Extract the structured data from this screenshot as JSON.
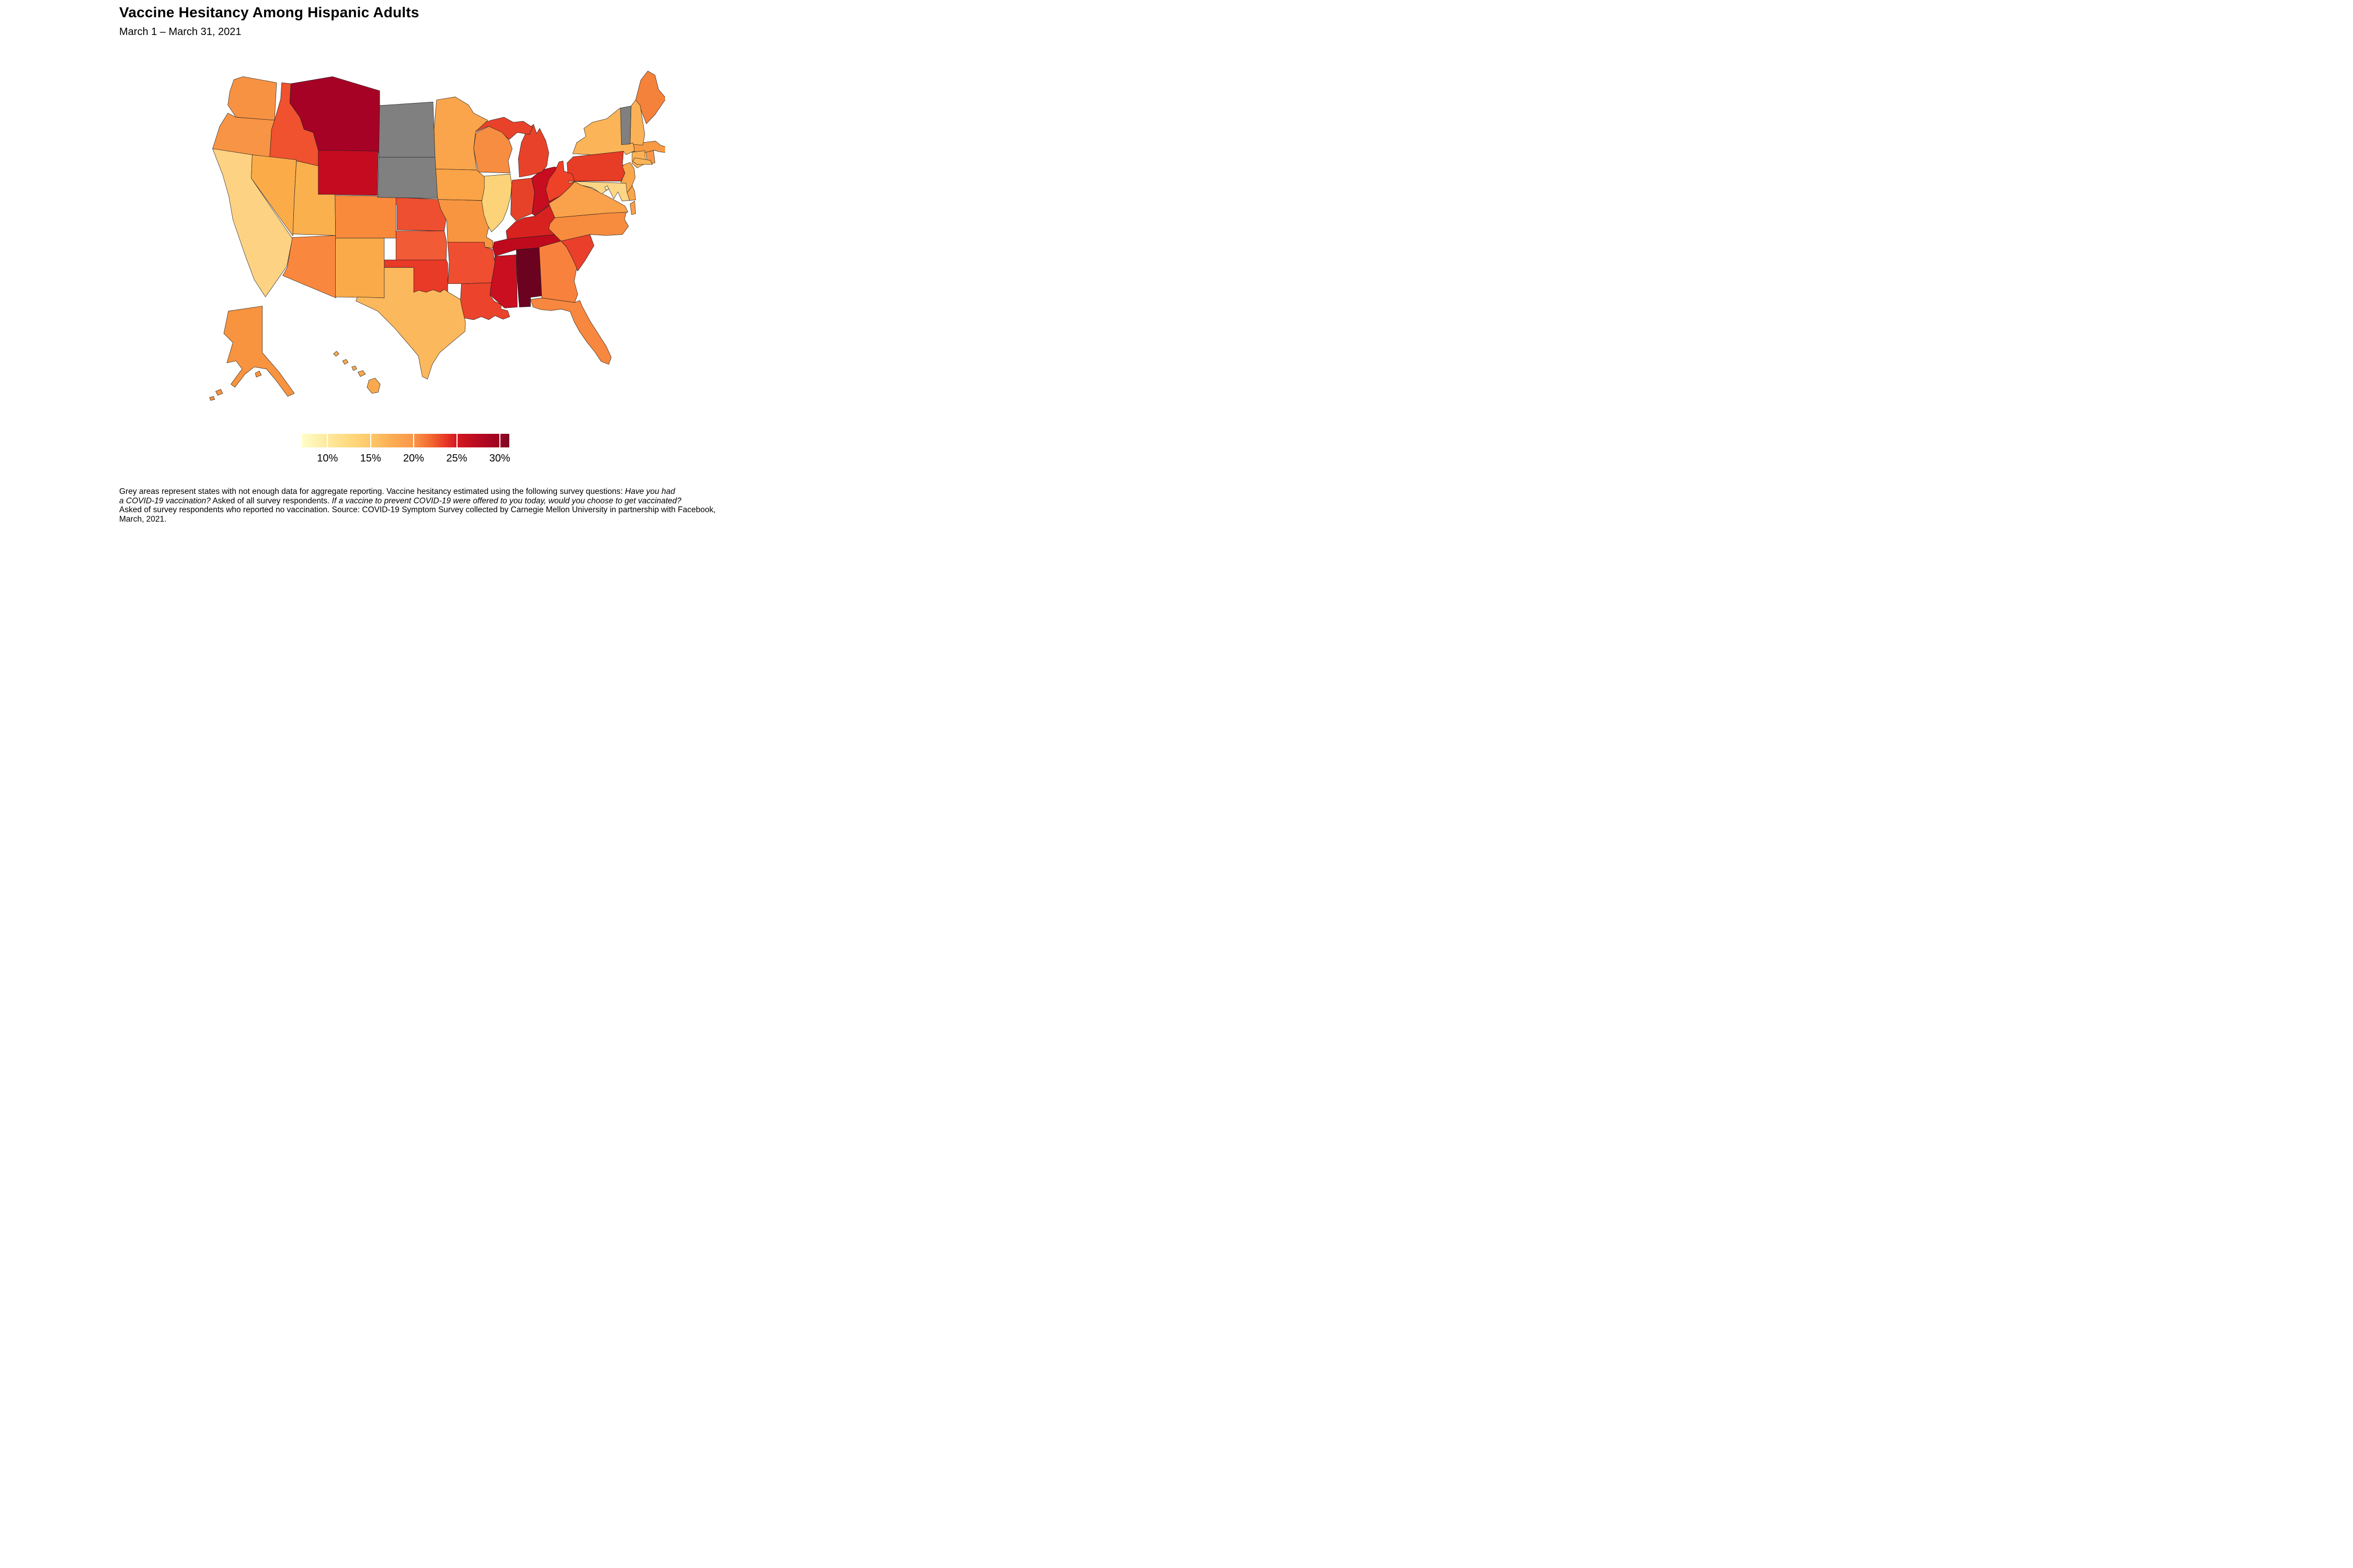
{
  "title": "Vaccine Hesitancy Among Hispanic Adults",
  "subtitle": "March 1 – March 31, 2021",
  "legend": {
    "ticks": [
      "10%",
      "15%",
      "20%",
      "25%",
      "30%"
    ],
    "tick_positions": [
      0.124,
      0.332,
      0.539,
      0.747,
      0.954
    ],
    "gradient": [
      [
        "#fffdc8",
        0
      ],
      [
        "#fee99e",
        0.124
      ],
      [
        "#fed97f",
        0.23
      ],
      [
        "#fdc868",
        0.332
      ],
      [
        "#fbab53",
        0.44
      ],
      [
        "#f9974a",
        0.539
      ],
      [
        "#f1632f",
        0.63
      ],
      [
        "#e63326",
        0.7
      ],
      [
        "#d41820",
        0.747
      ],
      [
        "#b80b21",
        0.85
      ],
      [
        "#9c0322",
        0.954
      ],
      [
        "#7a0a22",
        1
      ]
    ],
    "no_data_color": "#808080"
  },
  "footnote": {
    "lines": [
      [
        {
          "t": "Grey areas represent states with not enough data for aggregate reporting. Vaccine hesitancy estimated using the following survey questions: ",
          "i": 0
        },
        {
          "t": "Have you had",
          "i": 1
        }
      ],
      [
        {
          "t": "a COVID-19 vaccination?",
          "i": 1
        },
        {
          "t": " Asked of all survey respondents. ",
          "i": 0
        },
        {
          "t": "If a vaccine to prevent COVID-19 were offered to you today, would you choose to get vaccinated?",
          "i": 1
        }
      ],
      [
        {
          "t": "Asked of survey respondents who reported no vaccination. Source: COVID-19 Symptom Survey collected by Carnegie Mellon University in partnership with Facebook,",
          "i": 0
        }
      ],
      [
        {
          "t": "March, 2021.",
          "i": 0
        }
      ]
    ]
  },
  "chart_data": {
    "type": "heatmap",
    "subtype": "us-state-choropleth",
    "title": "Vaccine Hesitancy Among Hispanic Adults",
    "subtitle": "March 1 – March 31, 2021",
    "unit": "percent hesitant",
    "scale": {
      "min": 7,
      "max": 31,
      "tick_values": [
        10,
        15,
        20,
        25,
        30
      ],
      "palette": "YlOrRd (light yellow = low, dark maroon = high)"
    },
    "no_data_states": [
      "North Dakota",
      "South Dakota",
      "Vermont"
    ],
    "states": [
      {
        "abbr": "AL",
        "name": "Alabama",
        "value": 31.5,
        "color": "#6b0220"
      },
      {
        "abbr": "MT",
        "name": "Montana",
        "value": 28,
        "color": "#a60226"
      },
      {
        "abbr": "TN",
        "name": "Tennessee",
        "value": 26.5,
        "color": "#bf0a1e"
      },
      {
        "abbr": "MS",
        "name": "Mississippi",
        "value": 26,
        "color": "#c90f20"
      },
      {
        "abbr": "OH",
        "name": "Ohio",
        "value": 25.5,
        "color": "#c70d1f"
      },
      {
        "abbr": "WY",
        "name": "Wyoming",
        "value": 25,
        "color": "#c50b1f"
      },
      {
        "abbr": "KY",
        "name": "Kentucky",
        "value": 24,
        "color": "#d8221f"
      },
      {
        "abbr": "PA",
        "name": "Pennsylvania",
        "value": 22.5,
        "color": "#e73c26"
      },
      {
        "abbr": "IN",
        "name": "Indiana",
        "value": 22,
        "color": "#e64229"
      },
      {
        "abbr": "OK",
        "name": "Oklahoma",
        "value": 22,
        "color": "#e93a28"
      },
      {
        "abbr": "MI",
        "name": "Michigan",
        "value": 21.5,
        "color": "#e8432a"
      },
      {
        "abbr": "SC",
        "name": "South Carolina",
        "value": 21.5,
        "color": "#ea3f2b"
      },
      {
        "abbr": "LA",
        "name": "Louisiana",
        "value": 21,
        "color": "#eb432c"
      },
      {
        "abbr": "WV",
        "name": "West Virginia",
        "value": 21,
        "color": "#ee4127"
      },
      {
        "abbr": "ID",
        "name": "Idaho",
        "value": 20.5,
        "color": "#f0512f"
      },
      {
        "abbr": "NE",
        "name": "Nebraska",
        "value": 20.5,
        "color": "#ee4f30"
      },
      {
        "abbr": "AR",
        "name": "Arkansas",
        "value": 20.5,
        "color": "#ef4e30"
      },
      {
        "abbr": "KS",
        "name": "Kansas",
        "value": 20,
        "color": "#f15b36"
      },
      {
        "abbr": "ME",
        "name": "Maine",
        "value": 18.5,
        "color": "#f5823a"
      },
      {
        "abbr": "GA",
        "name": "Georgia",
        "value": 18,
        "color": "#f8813d"
      },
      {
        "abbr": "FL",
        "name": "Florida",
        "value": 18,
        "color": "#f8873f"
      },
      {
        "abbr": "NC",
        "name": "North Carolina",
        "value": 17.5,
        "color": "#f78b3e"
      },
      {
        "abbr": "WI",
        "name": "Wisconsin",
        "value": 17.5,
        "color": "#f78d41"
      },
      {
        "abbr": "CO",
        "name": "Colorado",
        "value": 17.5,
        "color": "#f98a3c"
      },
      {
        "abbr": "AZ",
        "name": "Arizona",
        "value": 17.5,
        "color": "#f9883e"
      },
      {
        "abbr": "WA",
        "name": "Washington",
        "value": 17,
        "color": "#f89243"
      },
      {
        "abbr": "OR",
        "name": "Oregon",
        "value": 17,
        "color": "#f89445"
      },
      {
        "abbr": "MO",
        "name": "Missouri",
        "value": 17,
        "color": "#f89540"
      },
      {
        "abbr": "AK",
        "name": "Alaska",
        "value": 17,
        "color": "#f8933f"
      },
      {
        "abbr": "RI",
        "name": "Rhode Island",
        "value": 17,
        "color": "#f89645"
      },
      {
        "abbr": "MA",
        "name": "Massachusetts",
        "value": 16.5,
        "color": "#f89a44"
      },
      {
        "abbr": "VA",
        "name": "Virginia",
        "value": 16,
        "color": "#f9a14b"
      },
      {
        "abbr": "MN",
        "name": "Minnesota",
        "value": 16,
        "color": "#faa54b"
      },
      {
        "abbr": "IA",
        "name": "Iowa",
        "value": 16,
        "color": "#faa347"
      },
      {
        "abbr": "DE",
        "name": "Delaware",
        "value": 16,
        "color": "#f9a74b"
      },
      {
        "abbr": "NJ",
        "name": "New Jersey",
        "value": 16,
        "color": "#faa74c"
      },
      {
        "abbr": "NM",
        "name": "New Mexico",
        "value": 15.5,
        "color": "#fbaa49"
      },
      {
        "abbr": "NV",
        "name": "Nevada",
        "value": 15.5,
        "color": "#fbac49"
      },
      {
        "abbr": "HI",
        "name": "Hawaii",
        "value": 15.5,
        "color": "#faa94e"
      },
      {
        "abbr": "UT",
        "name": "Utah",
        "value": 15,
        "color": "#fbb04e"
      },
      {
        "abbr": "NH",
        "name": "New Hampshire",
        "value": 15,
        "color": "#fbb156"
      },
      {
        "abbr": "CT",
        "name": "Connecticut",
        "value": 15,
        "color": "#fbb154"
      },
      {
        "abbr": "NY",
        "name": "New York",
        "value": 14.5,
        "color": "#fbb457"
      },
      {
        "abbr": "TX",
        "name": "Texas",
        "value": 14,
        "color": "#fcb85c"
      },
      {
        "abbr": "CA",
        "name": "California",
        "value": 12.5,
        "color": "#fdd283"
      },
      {
        "abbr": "IL",
        "name": "Illinois",
        "value": 12.5,
        "color": "#fcd378"
      },
      {
        "abbr": "MD",
        "name": "Maryland",
        "value": 12.5,
        "color": "#fdd685"
      },
      {
        "abbr": "DC",
        "name": "District of Columbia",
        "value": 10,
        "color": "#feefb3"
      },
      {
        "abbr": "ND",
        "name": "North Dakota",
        "value": null,
        "color": "#808080"
      },
      {
        "abbr": "SD",
        "name": "South Dakota",
        "value": null,
        "color": "#808080"
      },
      {
        "abbr": "VT",
        "name": "Vermont",
        "value": null,
        "color": "#808080"
      }
    ]
  }
}
